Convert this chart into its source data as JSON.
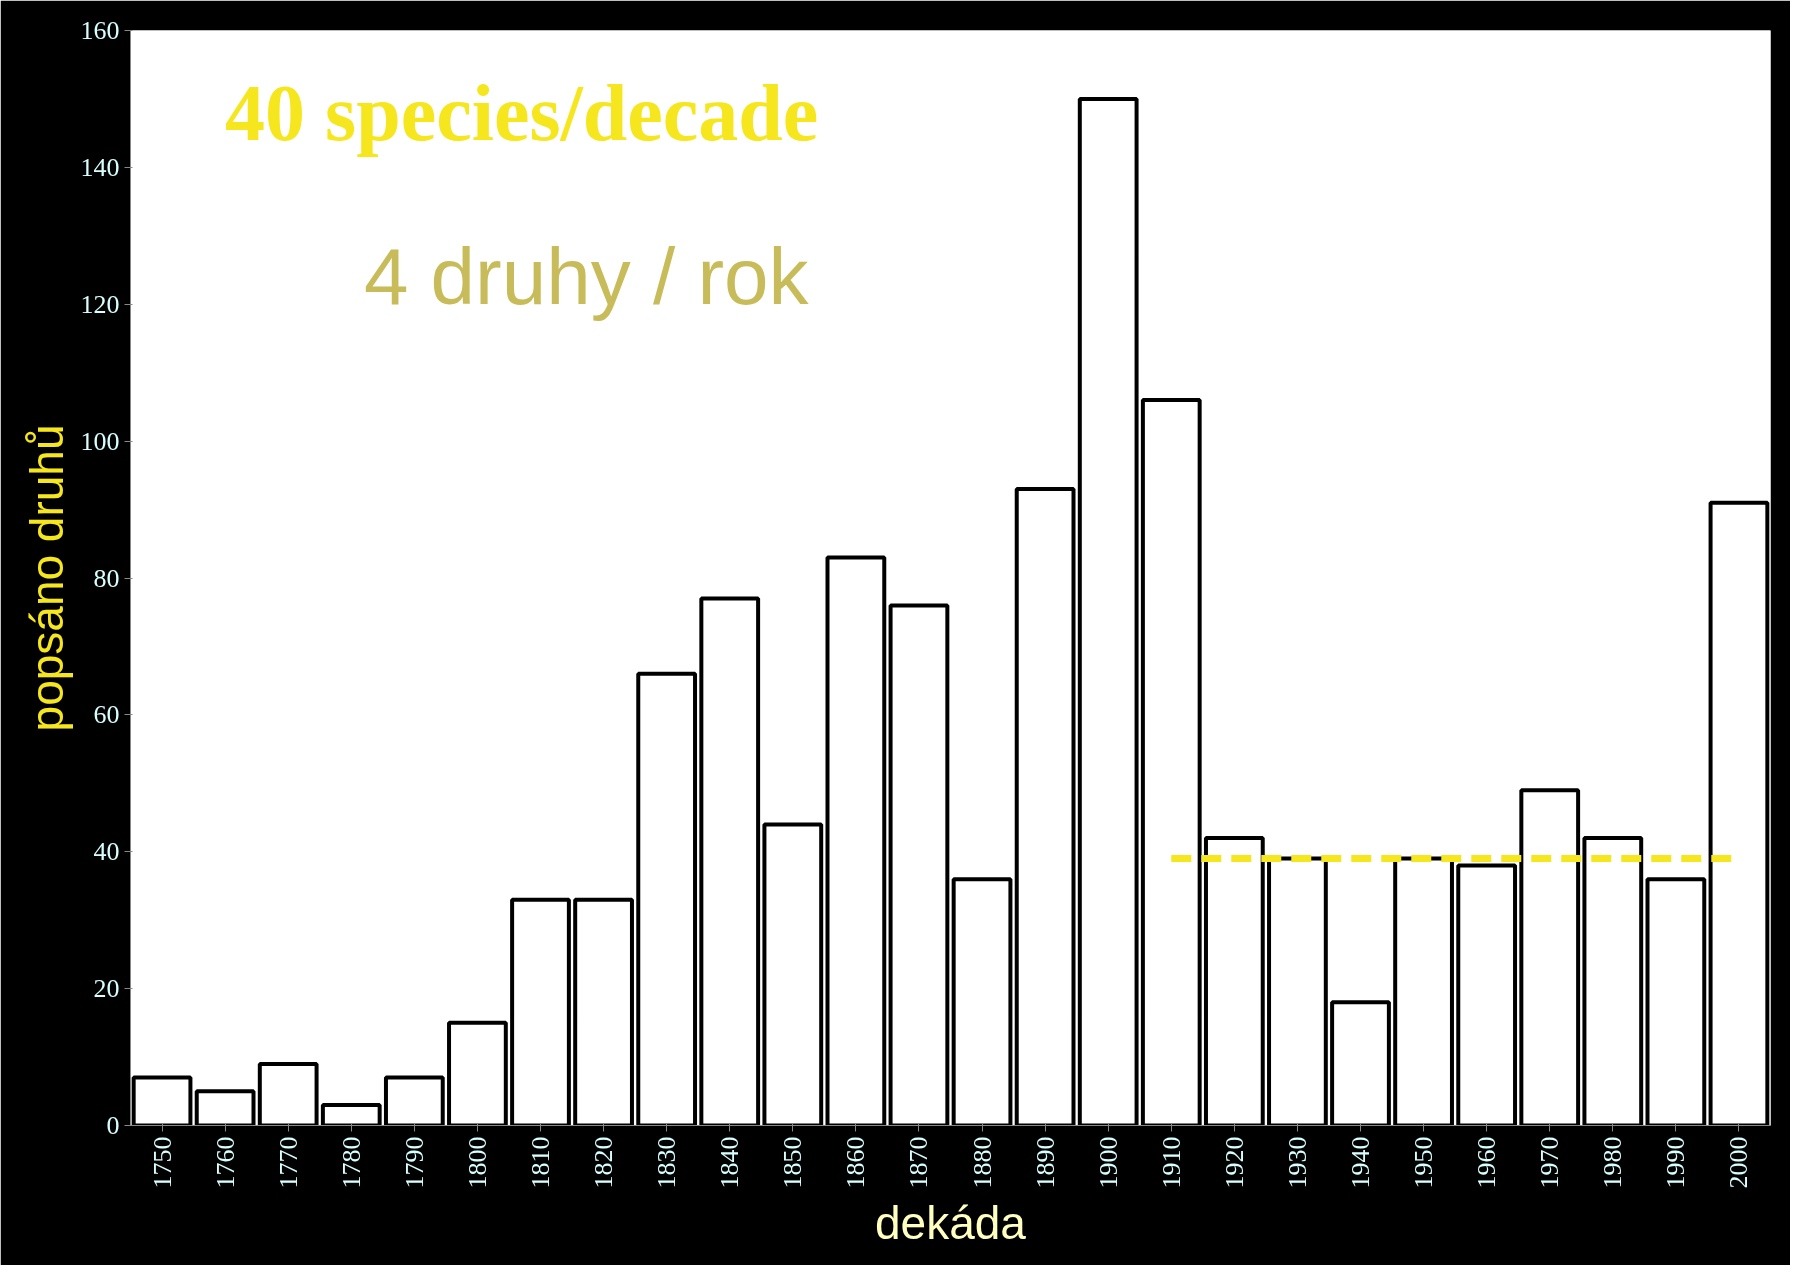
{
  "chart_data": {
    "type": "bar",
    "xlabel": "dekáda",
    "ylabel": "popsáno druhů",
    "annotations": [
      "40 species/decade",
      "4 druhy / rok"
    ],
    "categories": [
      "1750",
      "1760",
      "1770",
      "1780",
      "1790",
      "1800",
      "1810",
      "1820",
      "1830",
      "1840",
      "1850",
      "1860",
      "1870",
      "1880",
      "1890",
      "1900",
      "1910",
      "1920",
      "1930",
      "1940",
      "1950",
      "1960",
      "1970",
      "1980",
      "1990",
      "2000"
    ],
    "series": [
      {
        "color": "#ffffff",
        "values": [
          7,
          5,
          9,
          3,
          7,
          15,
          33,
          33,
          66,
          77,
          44,
          83,
          76,
          36,
          93,
          150,
          106,
          42,
          39,
          18,
          39,
          38,
          49,
          42,
          36,
          91
        ]
      },
      {
        "type": "line",
        "color": "#f5e61e",
        "line_style": "dashed",
        "marker": "none",
        "values": [
          null,
          null,
          null,
          null,
          null,
          null,
          null,
          null,
          null,
          null,
          null,
          null,
          null,
          null,
          null,
          null,
          39,
          39,
          39,
          39,
          39,
          39,
          39,
          39,
          39,
          39
        ]
      }
    ],
    "ylim": [
      0,
      160
    ],
    "yticks": [
      0,
      20,
      40,
      60,
      80,
      100,
      120,
      140,
      160
    ],
    "grid": false
  }
}
